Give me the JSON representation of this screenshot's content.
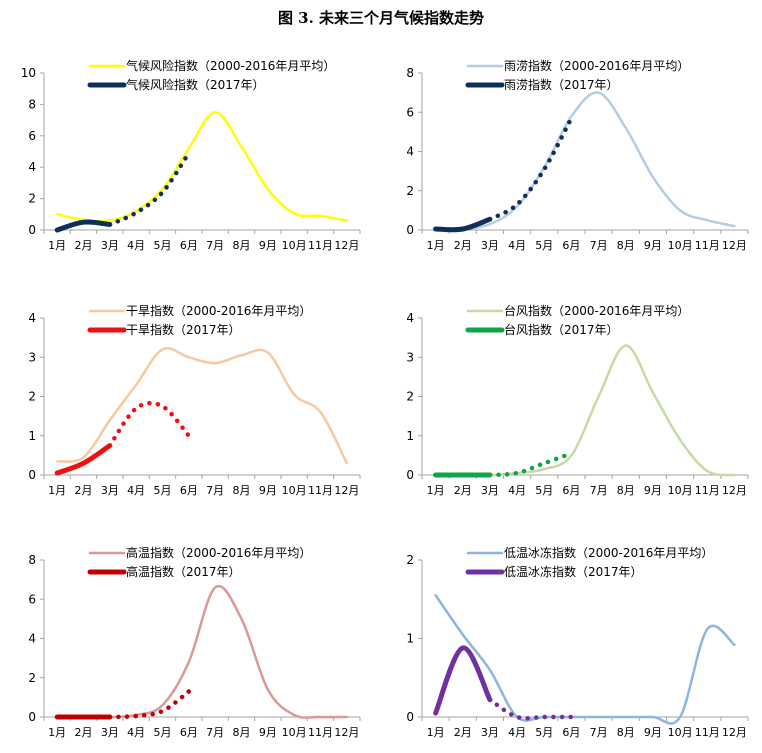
{
  "title": "图 3. 未来三个月气候指数走势",
  "months": [
    "1月",
    "2月",
    "3月",
    "4月",
    "5月",
    "6月",
    "7月",
    "8月",
    "9月",
    "10月",
    "11月",
    "12月"
  ],
  "chart_data": [
    {
      "type": "line",
      "ylim": [
        0,
        10
      ],
      "yticks": [
        0,
        2,
        4,
        6,
        8,
        10
      ],
      "series": [
        {
          "name": "气候风险指数（2000-2016年月平均）",
          "color": "#ffff00",
          "style": "solid",
          "values": [
            1.0,
            0.65,
            0.6,
            1.2,
            2.6,
            5.2,
            7.5,
            5.3,
            2.6,
            1.05,
            0.9,
            0.6
          ]
        },
        {
          "name": "气候风险指数（2017年）",
          "color": "#0e2f5c",
          "style": "solid-dotted",
          "solid_until": 3,
          "values": [
            0.0,
            0.5,
            0.35,
            1.1,
            2.4,
            4.9
          ]
        }
      ]
    },
    {
      "type": "line",
      "ylim": [
        0,
        8
      ],
      "yticks": [
        0,
        2,
        4,
        6,
        8
      ],
      "series": [
        {
          "name": "雨涝指数（2000-2016年月平均）",
          "color": "#b4cce4",
          "style": "solid",
          "values": [
            0.05,
            0.05,
            0.3,
            1.2,
            3.2,
            5.8,
            7.0,
            5.2,
            2.7,
            1.0,
            0.5,
            0.2
          ]
        },
        {
          "name": "雨涝指数（2017年）",
          "color": "#0e2f5c",
          "style": "solid-dotted",
          "solid_until": 3,
          "values": [
            0.05,
            0.05,
            0.55,
            1.3,
            3.1,
            5.7
          ]
        }
      ]
    },
    {
      "type": "line",
      "ylim": [
        0,
        4
      ],
      "yticks": [
        0,
        1,
        2,
        3,
        4
      ],
      "series": [
        {
          "name": "干旱指数（2000-2016年月平均）",
          "color": "#f8c9a0",
          "style": "solid",
          "values": [
            0.35,
            0.45,
            1.4,
            2.3,
            3.2,
            3.0,
            2.85,
            3.05,
            3.12,
            2.05,
            1.6,
            0.3
          ]
        },
        {
          "name": "干旱指数（2017年）",
          "color": "#ee1111",
          "style": "solid-dotted",
          "solid_until": 3,
          "values": [
            0.05,
            0.3,
            0.75,
            1.7,
            1.75,
            1.0
          ]
        }
      ]
    },
    {
      "type": "line",
      "ylim": [
        0,
        4
      ],
      "yticks": [
        0,
        1,
        2,
        3,
        4
      ],
      "series": [
        {
          "name": "台风指数（2000-2016年月平均）",
          "color": "#c6dba2",
          "style": "solid",
          "values": [
            0.0,
            0.0,
            0.0,
            0.05,
            0.15,
            0.5,
            2.0,
            3.3,
            2.1,
            0.9,
            0.1,
            0.0
          ]
        },
        {
          "name": "台风指数（2017年）",
          "color": "#0aa64a",
          "style": "solid-dotted",
          "solid_until": 3,
          "values": [
            0.0,
            0.0,
            0.0,
            0.05,
            0.3,
            0.55
          ]
        }
      ]
    },
    {
      "type": "line",
      "ylim": [
        0,
        8
      ],
      "yticks": [
        0,
        2,
        4,
        6,
        8
      ],
      "series": [
        {
          "name": "高温指数（2000-2016年月平均）",
          "color": "#d99999",
          "style": "solid",
          "values": [
            0.0,
            0.0,
            0.0,
            0.1,
            0.6,
            2.8,
            6.6,
            5.0,
            1.4,
            0.1,
            0.0,
            0.0
          ]
        },
        {
          "name": "高温指数（2017年）",
          "color": "#c00000",
          "style": "solid-dotted",
          "solid_until": 3,
          "values": [
            0.0,
            0.0,
            0.0,
            0.05,
            0.3,
            1.3
          ]
        }
      ]
    },
    {
      "type": "line",
      "ylim": [
        0,
        2
      ],
      "yticks": [
        0,
        1,
        2
      ],
      "series": [
        {
          "name": "低温冰冻指数（2000-2016年月平均）",
          "color": "#8fb4df",
          "style": "solid",
          "values": [
            1.55,
            1.05,
            0.6,
            0.0,
            0.0,
            0.0,
            0.0,
            0.0,
            0.0,
            0.0,
            1.12,
            0.92
          ]
        },
        {
          "name": "低温冰冻指数（2017年）",
          "color": "#7030a0",
          "style": "solid-dotted",
          "solid_until": 3,
          "values": [
            0.05,
            0.88,
            0.22,
            0.0,
            0.0,
            0.0
          ]
        }
      ]
    }
  ]
}
